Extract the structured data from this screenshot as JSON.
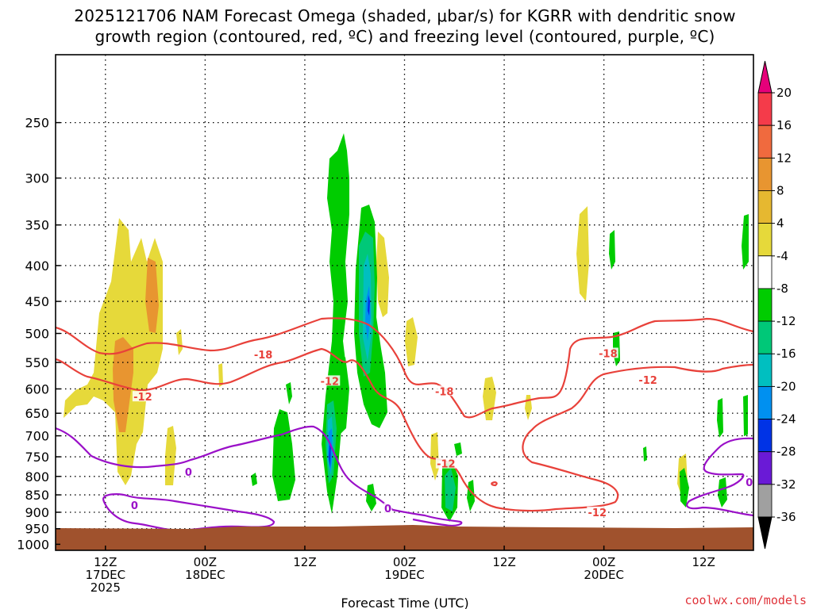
{
  "chart_data": {
    "type": "heatmap",
    "title_line1": "2025121706 NAM Forecast Omega (shaded, μbar/s) for KGRR with dendritic snow",
    "title_line2": "growth region (contoured, red, ºC) and freezing level (contoured, purple, ºC)",
    "xlabel": "Forecast Time (UTC)",
    "ylabel": "",
    "y_ticks": [
      250,
      300,
      350,
      400,
      450,
      500,
      550,
      600,
      650,
      700,
      750,
      800,
      850,
      900,
      950,
      1000
    ],
    "y_range": [
      200,
      1020
    ],
    "x_range_hours": [
      0,
      84
    ],
    "x_ticks": [
      {
        "hour": 6,
        "line1": "12Z",
        "line2": "17DEC",
        "line3": "2025"
      },
      {
        "hour": 18,
        "line1": "00Z",
        "line2": "18DEC",
        "line3": ""
      },
      {
        "hour": 30,
        "line1": "12Z",
        "line2": "",
        "line3": ""
      },
      {
        "hour": 42,
        "line1": "00Z",
        "line2": "19DEC",
        "line3": ""
      },
      {
        "hour": 54,
        "line1": "12Z",
        "line2": "",
        "line3": ""
      },
      {
        "hour": 66,
        "line1": "00Z",
        "line2": "20DEC",
        "line3": ""
      },
      {
        "hour": 78,
        "line1": "12Z",
        "line2": "",
        "line3": ""
      }
    ],
    "grid": true,
    "colorbar": {
      "ticks": [
        20,
        16,
        12,
        8,
        4,
        -4,
        -8,
        -12,
        -16,
        -20,
        -24,
        -28,
        -32,
        -36
      ],
      "colors": [
        "#f53b4a",
        "#f06a3e",
        "#e89530",
        "#e6b830",
        "#e6d93a",
        "#ffffff",
        "#00cc00",
        "#00c878",
        "#00bfc0",
        "#0090f0",
        "#0033e6",
        "#6a1ad6",
        "#a000c0",
        "#a0a0a0"
      ],
      "top_arrow_color": "#e6007a",
      "bottom_arrow_color": "#000000"
    },
    "contour_labels": [
      {
        "text": "-18",
        "color": "#e8413a",
        "hour": 25.0,
        "pressure": 537
      },
      {
        "text": "-12",
        "color": "#e8413a",
        "hour": 10.5,
        "pressure": 617
      },
      {
        "text": "-12",
        "color": "#e8413a",
        "hour": 33.0,
        "pressure": 586
      },
      {
        "text": "-18",
        "color": "#e8413a",
        "hour": 46.8,
        "pressure": 606
      },
      {
        "text": "-12",
        "color": "#e8413a",
        "hour": 47.0,
        "pressure": 769
      },
      {
        "text": "-18",
        "color": "#e8413a",
        "hour": 66.5,
        "pressure": 535
      },
      {
        "text": "-12",
        "color": "#e8413a",
        "hour": 71.3,
        "pressure": 584
      },
      {
        "text": "-12",
        "color": "#e8413a",
        "hour": 65.2,
        "pressure": 902
      },
      {
        "text": "0",
        "color": "#9a10c8",
        "hour": 16.0,
        "pressure": 790
      },
      {
        "text": "0",
        "color": "#9a10c8",
        "hour": 9.5,
        "pressure": 882
      },
      {
        "text": "0",
        "color": "#9a10c8",
        "hour": 40.0,
        "pressure": 891
      },
      {
        "text": "0",
        "color": "#9a10c8",
        "hour": 83.5,
        "pressure": 817
      }
    ],
    "surface_color": "#a0522d"
  },
  "credit": "coolwx.com/models"
}
